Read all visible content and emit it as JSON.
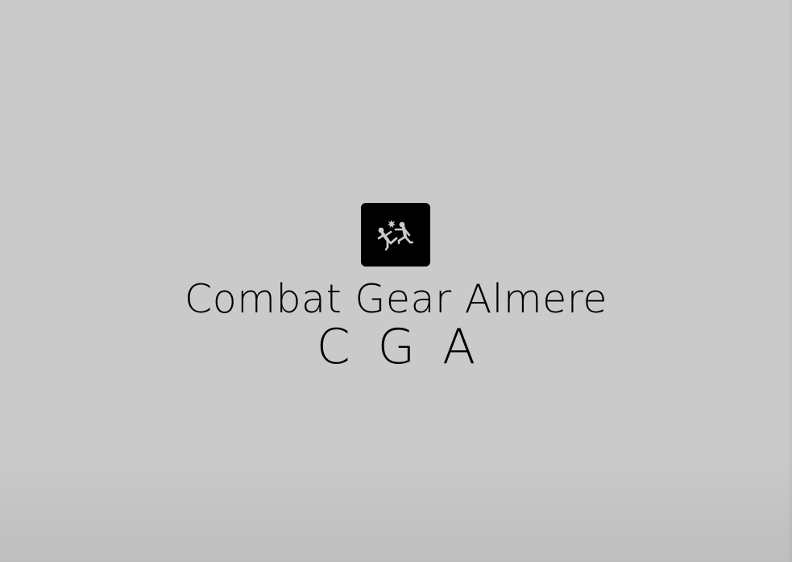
{
  "logo": {
    "name": "Combat Gear Almere",
    "abbreviation": "CGA",
    "icon": "fighters-icon",
    "icon_background": "#000000",
    "icon_color": "#cacaca",
    "text_color": "#000000",
    "background": "#cacaca"
  }
}
